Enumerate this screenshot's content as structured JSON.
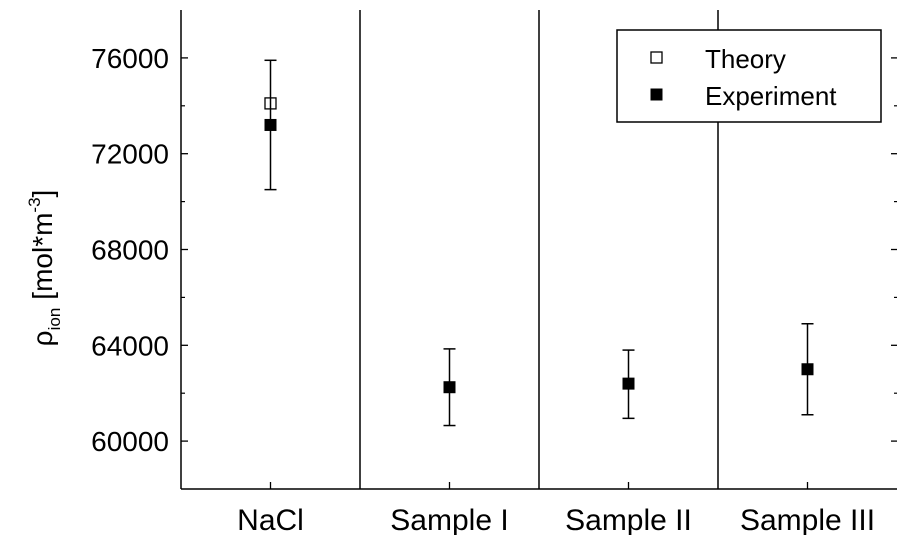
{
  "chart_data": {
    "type": "scatter",
    "title": "",
    "xlabel": "",
    "ylabel": {
      "symbol": "ρ",
      "subscript": "ion",
      "units_open": "[mol*m",
      "units_sup": "-3",
      "units_close": "]"
    },
    "categories": [
      "NaCl",
      "Sample I",
      "Sample II",
      "Sample III"
    ],
    "ylim": [
      58000,
      78000
    ],
    "yticks": [
      60000,
      64000,
      68000,
      72000,
      76000
    ],
    "ytick_labels": [
      "60000",
      "64000",
      "68000",
      "72000",
      "76000"
    ],
    "grid": false,
    "category_separators": true,
    "legend_position": "top-right",
    "series": [
      {
        "name": "Theory",
        "marker": "open-square",
        "color": "#000000",
        "points": [
          {
            "category": "NaCl",
            "value": 74100
          }
        ]
      },
      {
        "name": "Experiment",
        "marker": "filled-square",
        "color": "#000000",
        "points": [
          {
            "category": "NaCl",
            "value": 73200,
            "err_low": 70500,
            "err_high": 75900
          },
          {
            "category": "Sample I",
            "value": 62250,
            "err_low": 60650,
            "err_high": 63850
          },
          {
            "category": "Sample II",
            "value": 62400,
            "err_low": 60950,
            "err_high": 63800
          },
          {
            "category": "Sample III",
            "value": 63000,
            "err_low": 61100,
            "err_high": 64900
          }
        ]
      }
    ]
  }
}
